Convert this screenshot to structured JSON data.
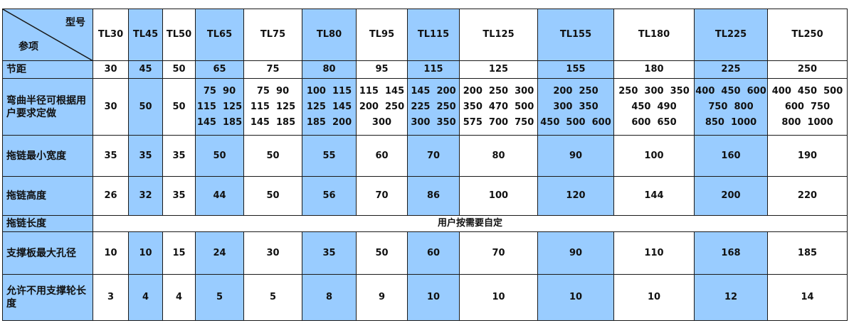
{
  "header": {
    "corner_top": "型号",
    "corner_bottom": "参项",
    "models": [
      "TL30",
      "TL45",
      "TL50",
      "TL65",
      "TL75",
      "TL80",
      "TL95",
      "TL115",
      "TL125",
      "TL155",
      "TL180",
      "TL225",
      "TL250"
    ]
  },
  "rows": [
    {
      "label": "节距",
      "values": [
        "30",
        "45",
        "50",
        "65",
        "75",
        "80",
        "95",
        "115",
        "125",
        "155",
        "180",
        "225",
        "250"
      ]
    },
    {
      "label": "弯曲半径可根据用户要求定做",
      "values": [
        [
          "30"
        ],
        [
          "50"
        ],
        [
          "50"
        ],
        [
          "75  90",
          "115  125",
          "145  185"
        ],
        [
          "75  90",
          "115  125",
          "145  185"
        ],
        [
          "100  115",
          "125  145",
          "185  200"
        ],
        [
          "115  145",
          "200  250",
          "300"
        ],
        [
          "145  200",
          "225  250",
          "300  350"
        ],
        [
          "200  250  300",
          "350  470  500",
          "575  700  750"
        ],
        [
          "200  250",
          "300  350",
          "450  500  600"
        ],
        [
          "250  300  350",
          "450  490",
          "600  650"
        ],
        [
          "400  450  600",
          "750  800",
          "850  1000"
        ],
        [
          "400  450  500",
          "600  750",
          "800  1000"
        ]
      ]
    },
    {
      "label": "拖链最小宽度",
      "values": [
        "35",
        "35",
        "35",
        "50",
        "50",
        "55",
        "60",
        "70",
        "80",
        "90",
        "100",
        "160",
        "190"
      ]
    },
    {
      "label": "拖链高度",
      "values": [
        "26",
        "32",
        "35",
        "44",
        "50",
        "56",
        "70",
        "86",
        "100",
        "120",
        "144",
        "200",
        "220"
      ]
    },
    {
      "label": "拖链长度",
      "span_text": "用户按需要自定"
    },
    {
      "label": "支撑板最大孔径",
      "values": [
        "10",
        "10",
        "15",
        "24",
        "30",
        "35",
        "50",
        "60",
        "70",
        "90",
        "110",
        "168",
        "185"
      ]
    },
    {
      "label": "允许不用支撑轮长度",
      "values": [
        "3",
        "4",
        "4",
        "5",
        "5",
        "8",
        "9",
        "10",
        "10",
        "10",
        "10",
        "12",
        "14"
      ]
    }
  ],
  "colors": {
    "highlight": "#99ccff",
    "border": "#1a1a1a"
  }
}
